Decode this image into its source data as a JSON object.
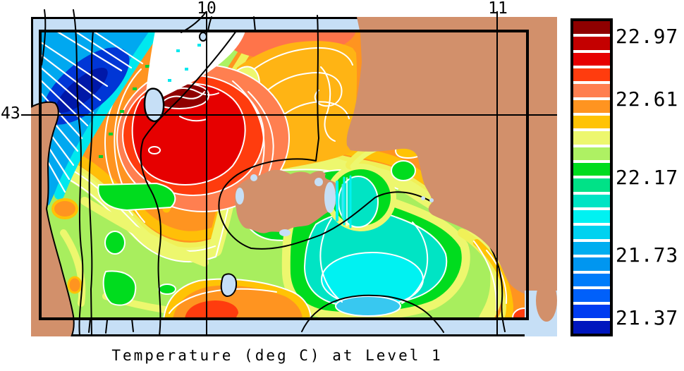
{
  "title": {
    "text": "Temperature (deg C) at Level 1"
  },
  "axes": {
    "x_ticks": [
      "10",
      "11"
    ],
    "y_ticks": [
      "43"
    ]
  },
  "colorbar": {
    "segments_top_to_bottom": [
      "#8F0000",
      "#C40000",
      "#E60000",
      "#FF3C0E",
      "#FF7F50",
      "#FF9420",
      "#FFC305",
      "#EDF76E",
      "#AEF163",
      "#00DC1E",
      "#00E287",
      "#00E4C4",
      "#00F2F2",
      "#00D2F0",
      "#00AEF0",
      "#0096F0",
      "#007CFA",
      "#0060FA",
      "#003CF0",
      "#0016BE"
    ],
    "labels": [
      {
        "text": "22.97",
        "boundary_index": 1
      },
      {
        "text": "22.61",
        "boundary_index": 5
      },
      {
        "text": "22.17",
        "boundary_index": 10
      },
      {
        "text": "21.73",
        "boundary_index": 15
      },
      {
        "text": "21.37",
        "boundary_index": 19
      }
    ]
  },
  "map_colors": {
    "land": "#D2906B",
    "sea_margin": "#C6DFF6",
    "frame": "#000000",
    "contour_line": "#FFFFFF"
  },
  "chart_data": {
    "type": "heatmap",
    "subtype": "filled-contour-map",
    "title": "Temperature (deg C) at Level 1",
    "value_label": "Temperature (deg C)",
    "level": 1,
    "x_ticks": [
      10,
      11
    ],
    "y_ticks": [
      43
    ],
    "colorbar_labeled_levels": [
      22.97,
      22.61,
      22.17,
      21.73,
      21.37
    ],
    "colorbar_segment_count": 20,
    "palette_top_to_bottom": [
      "#8F0000",
      "#C40000",
      "#E60000",
      "#FF3C0E",
      "#FF7F50",
      "#FF9420",
      "#FFC305",
      "#EDF76E",
      "#AEF163",
      "#00DC1E",
      "#00E287",
      "#00E4C4",
      "#00F2F2",
      "#00D2F0",
      "#00AEF0",
      "#0096F0",
      "#007CFA",
      "#0060FA",
      "#003CF0",
      "#0016BE"
    ],
    "legend_position": "right",
    "grid": "graticule lines at x=10, x=11, y=43"
  }
}
